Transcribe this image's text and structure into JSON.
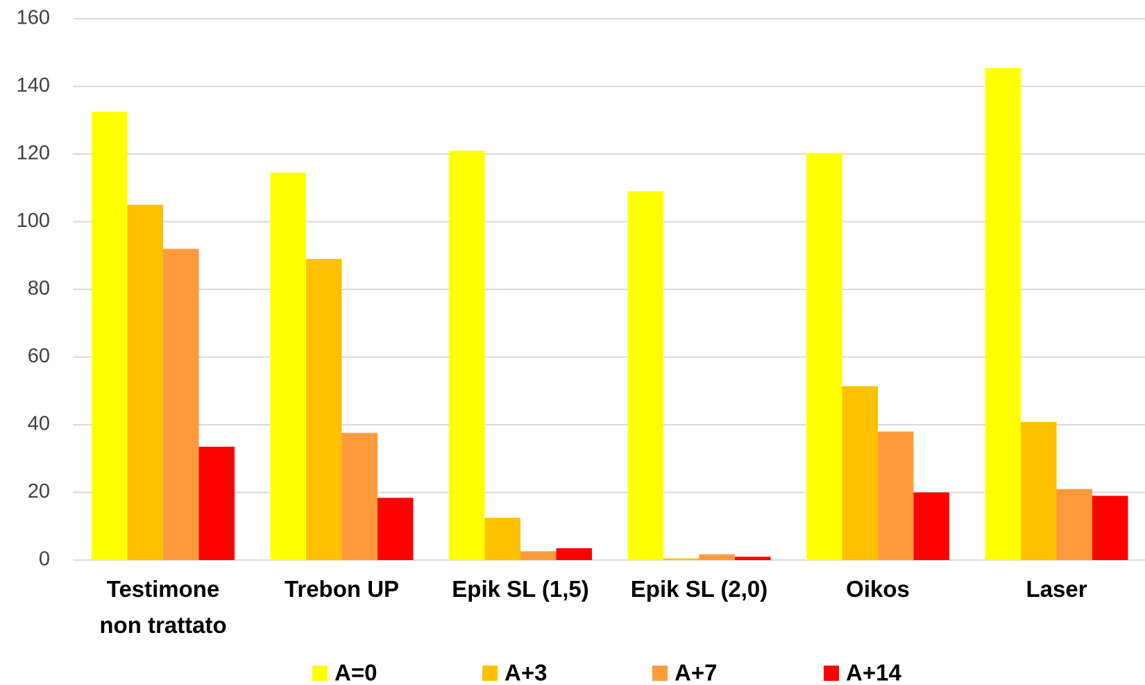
{
  "chart_data": {
    "type": "bar",
    "categories": [
      "Testimone non trattato",
      "Trebon UP",
      "Epik SL (1,5)",
      "Epik SL (2,0)",
      "Oikos",
      "Laser"
    ],
    "series": [
      {
        "name": "A=0",
        "color": "#ffff00",
        "values": [
          132.5,
          114.5,
          121,
          109,
          120.3,
          145.4
        ]
      },
      {
        "name": "A+3",
        "color": "#ffc000",
        "values": [
          105,
          89,
          12.5,
          0.5,
          51.4,
          40.8
        ]
      },
      {
        "name": "A+7",
        "color": "#ff9a3c",
        "values": [
          92,
          37.6,
          2.6,
          1.7,
          38,
          21
        ]
      },
      {
        "name": "A+14",
        "color": "#ff0000",
        "values": [
          33.5,
          18.4,
          3.5,
          1,
          20,
          19
        ]
      }
    ],
    "ylim": [
      0,
      160
    ],
    "yticks": [
      0,
      20,
      40,
      60,
      80,
      100,
      120,
      140,
      160
    ],
    "grid": true,
    "legend": "bottom"
  }
}
